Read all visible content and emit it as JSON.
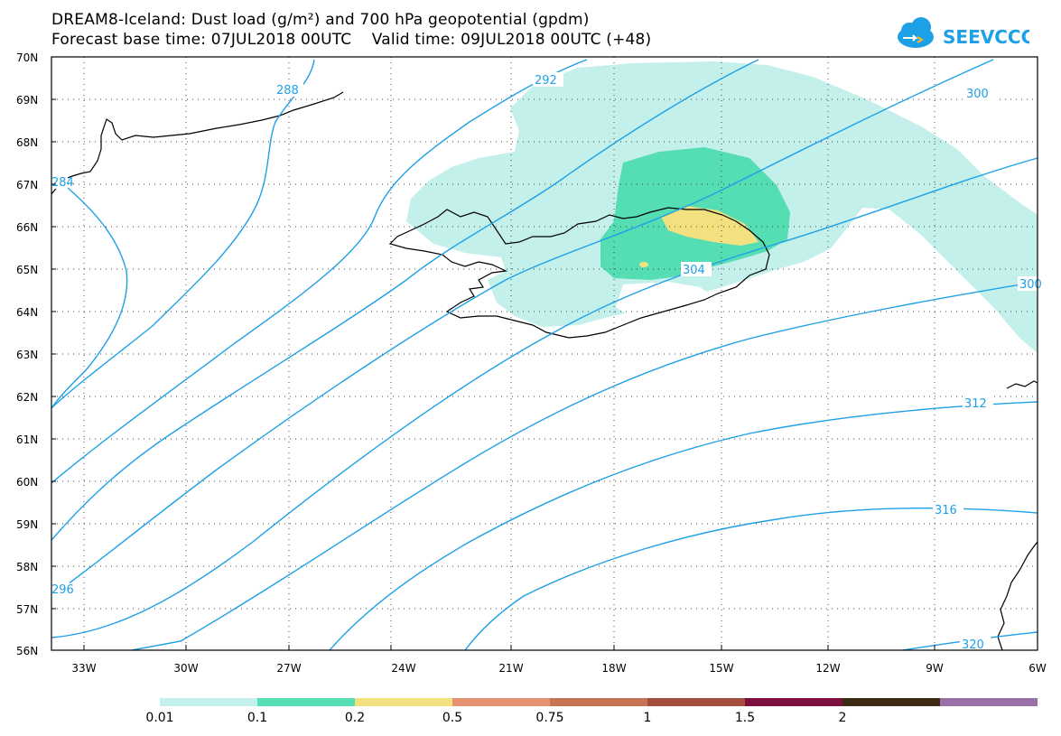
{
  "header": {
    "title_line1": "DREAM8-Iceland: Dust load (g/m²) and 700 hPa geopotential (gpdm)",
    "title_line2": "Forecast base time: 07JUL2018 00UTC    Valid time: 09JUL2018 00UTC (+48)"
  },
  "logo": {
    "text": "SEEVCCC",
    "icon": "cloud-arrow-icon",
    "color": "#1ea0e6"
  },
  "map": {
    "lat_labels": [
      "70N",
      "69N",
      "68N",
      "67N",
      "66N",
      "65N",
      "64N",
      "63N",
      "62N",
      "61N",
      "60N",
      "59N",
      "58N",
      "57N",
      "56N"
    ],
    "lon_labels": [
      "33W",
      "30W",
      "27W",
      "24W",
      "21W",
      "18W",
      "15W",
      "12W",
      "9W",
      "6W"
    ],
    "contour_labels": [
      "288",
      "292",
      "300",
      "304",
      "300",
      "312",
      "316",
      "320",
      "296",
      "284"
    ],
    "contour_color": "#1ea0e6",
    "coast_color": "#000000"
  },
  "legend": {
    "colors": [
      "#c3f0ea",
      "#55ddb3",
      "#f3e07e",
      "#e69271",
      "#c67454",
      "#a44c3e",
      "#7e0e3e",
      "#3e2b14",
      "#9a70a8"
    ],
    "labels": [
      "0.01",
      "0.1",
      "0.2",
      "0.5",
      "0.75",
      "1",
      "1.5",
      "2"
    ]
  }
}
